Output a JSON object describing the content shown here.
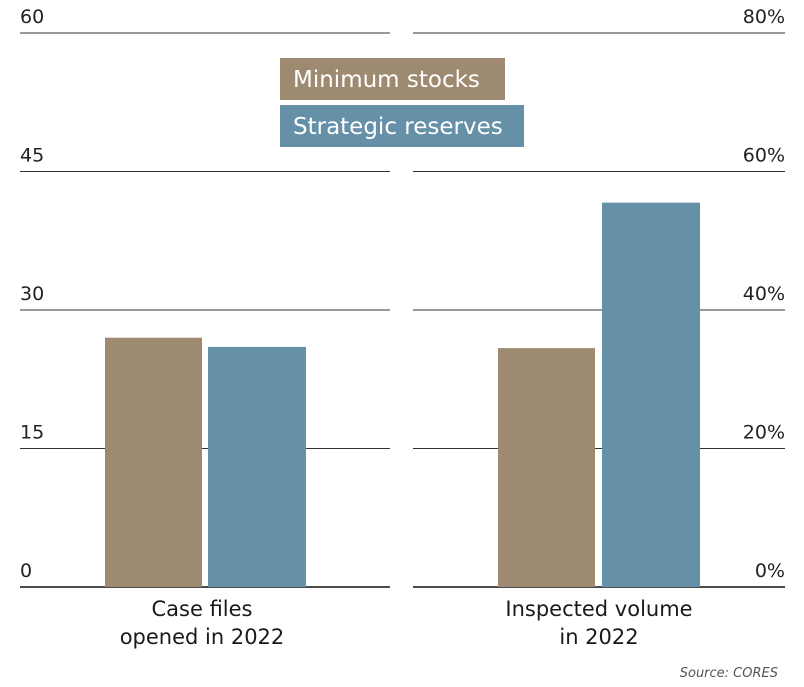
{
  "chart_data": [
    {
      "type": "bar",
      "categories": [
        "Case files\nopened in 2022"
      ],
      "series": [
        {
          "name": "Minimum stocks",
          "values": [
            27
          ]
        },
        {
          "name": "Strategic reserves",
          "values": [
            26
          ]
        }
      ],
      "ylim": [
        0,
        60
      ],
      "yticks": [
        "0",
        "15",
        "30",
        "45",
        "60"
      ],
      "grid": true
    },
    {
      "type": "bar",
      "categories": [
        "Inspected volume\nin 2022"
      ],
      "series": [
        {
          "name": "Minimum stocks",
          "values": [
            34.5
          ]
        },
        {
          "name": "Strategic reserves",
          "values": [
            55.5
          ]
        }
      ],
      "ylim": [
        0,
        80
      ],
      "yticks": [
        "0%",
        "20%",
        "40%",
        "60%",
        "80%"
      ],
      "grid": true
    }
  ],
  "legend": {
    "placement": "top-center",
    "items": [
      {
        "label": "Minimum stocks",
        "color": "#9e8a70"
      },
      {
        "label": "Strategic reserves",
        "color": "#6590a8"
      }
    ]
  },
  "source": "Source: CORES"
}
